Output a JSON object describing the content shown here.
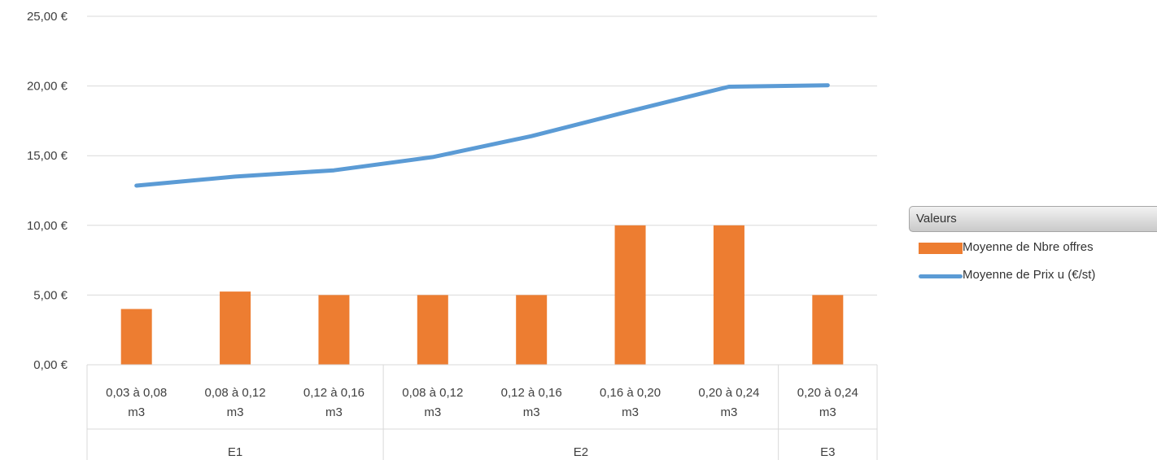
{
  "chart_data": {
    "type": "bar",
    "y_ticks": [
      "0,00 €",
      "5,00 €",
      "10,00 €",
      "15,00 €",
      "20,00 €",
      "25,00 €"
    ],
    "ylim": [
      0,
      25
    ],
    "grid": true,
    "legend_position": "right",
    "categories": [
      "0,03 à 0,08 m3",
      "0,08 à 0,12 m3",
      "0,12 à 0,16 m3",
      "0,08 à 0,12 m3",
      "0,12 à 0,16 m3",
      "0,16 à 0,20 m3",
      "0,20 à 0,24 m3",
      "0,20 à 0,24 m3"
    ],
    "categories_lines": [
      [
        "0,03 à 0,08",
        "m3"
      ],
      [
        "0,08 à 0,12",
        "m3"
      ],
      [
        "0,12 à 0,16",
        "m3"
      ],
      [
        "0,08 à 0,12",
        "m3"
      ],
      [
        "0,12 à 0,16",
        "m3"
      ],
      [
        "0,16 à 0,20",
        "m3"
      ],
      [
        "0,20 à 0,24",
        "m3"
      ],
      [
        "0,20 à 0,24",
        "m3"
      ]
    ],
    "groups": [
      {
        "label": "E1",
        "span": 3
      },
      {
        "label": "E2",
        "span": 4
      },
      {
        "label": "E3",
        "span": 1
      }
    ],
    "legend_title": "Valeurs",
    "series": [
      {
        "name": "Moyenne de Nbre offres",
        "kind": "bar",
        "color": "#ED7D31",
        "values": [
          4,
          5.25,
          5,
          5,
          5,
          10,
          10,
          5
        ]
      },
      {
        "name": "Moyenne de Prix u (€/st)",
        "kind": "line",
        "color": "#5B9BD5",
        "values": [
          12.85,
          13.5,
          13.95,
          14.9,
          16.4,
          18.2,
          19.95,
          20.05
        ]
      }
    ]
  }
}
